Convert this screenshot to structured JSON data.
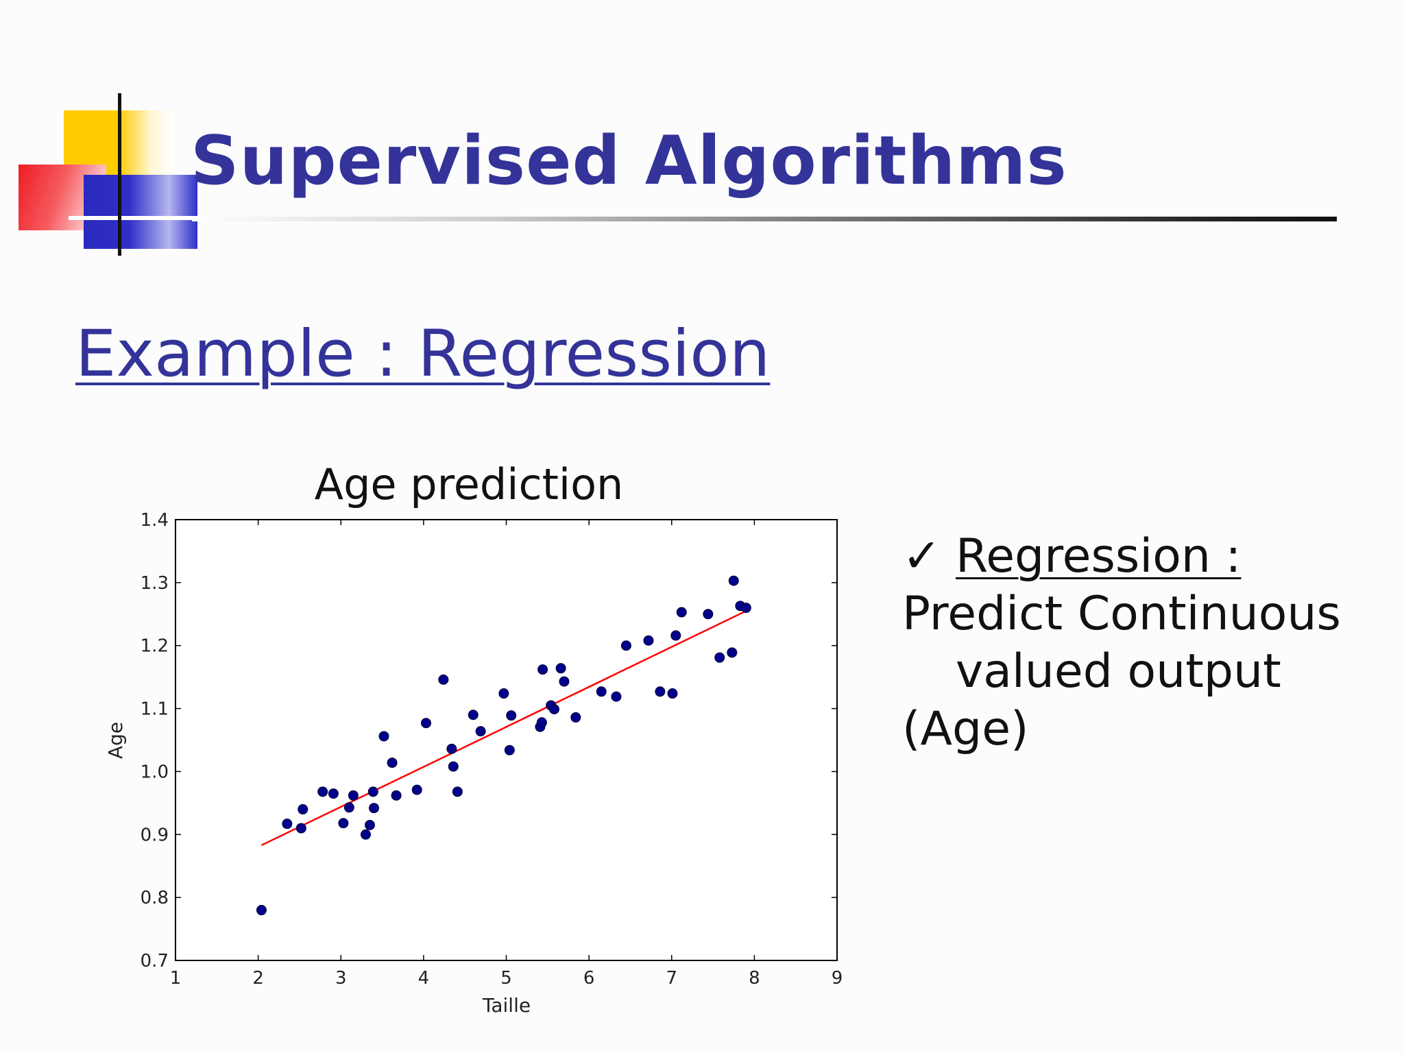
{
  "slide": {
    "title": "Supervised Algorithms",
    "section_heading": "Example : Regression",
    "accent_color": "#333399"
  },
  "bullet": {
    "icon": "checkmark-icon",
    "check": "✓",
    "heading": "Regression :",
    "line1": "Predict Continuous",
    "line2": "valued output",
    "line3": "(Age)"
  },
  "chart_data": {
    "type": "scatter",
    "title": "Age prediction",
    "xlabel": "Taille",
    "ylabel": "Age",
    "xlim": [
      1,
      9
    ],
    "ylim": [
      0.7,
      1.4
    ],
    "xticks": [
      "1",
      "2",
      "3",
      "4",
      "5",
      "6",
      "7",
      "8",
      "9"
    ],
    "yticks": [
      "0.7",
      "0.8",
      "0.9",
      "1.0",
      "1.1",
      "1.2",
      "1.3",
      "1.4"
    ],
    "grid": false,
    "point_color": "#00008b",
    "line_color": "#ff0000",
    "points": [
      [
        2.04,
        0.78
      ],
      [
        2.35,
        0.917
      ],
      [
        2.52,
        0.91
      ],
      [
        2.54,
        0.94
      ],
      [
        2.78,
        0.968
      ],
      [
        2.91,
        0.965
      ],
      [
        3.03,
        0.918
      ],
      [
        3.1,
        0.943
      ],
      [
        3.15,
        0.962
      ],
      [
        3.3,
        0.9
      ],
      [
        3.35,
        0.915
      ],
      [
        3.39,
        0.968
      ],
      [
        3.4,
        0.942
      ],
      [
        3.52,
        1.056
      ],
      [
        3.62,
        1.014
      ],
      [
        3.67,
        0.962
      ],
      [
        3.92,
        0.971
      ],
      [
        4.03,
        1.077
      ],
      [
        4.24,
        1.146
      ],
      [
        4.34,
        1.036
      ],
      [
        4.36,
        1.008
      ],
      [
        4.41,
        0.968
      ],
      [
        4.6,
        1.09
      ],
      [
        4.69,
        1.064
      ],
      [
        4.97,
        1.124
      ],
      [
        5.04,
        1.034
      ],
      [
        5.06,
        1.089
      ],
      [
        5.41,
        1.071
      ],
      [
        5.43,
        1.078
      ],
      [
        5.44,
        1.162
      ],
      [
        5.54,
        1.105
      ],
      [
        5.58,
        1.099
      ],
      [
        5.66,
        1.164
      ],
      [
        5.7,
        1.143
      ],
      [
        5.84,
        1.086
      ],
      [
        6.15,
        1.127
      ],
      [
        6.33,
        1.119
      ],
      [
        6.45,
        1.2
      ],
      [
        6.72,
        1.208
      ],
      [
        6.86,
        1.127
      ],
      [
        7.01,
        1.124
      ],
      [
        7.05,
        1.216
      ],
      [
        7.12,
        1.253
      ],
      [
        7.44,
        1.25
      ],
      [
        7.58,
        1.181
      ],
      [
        7.73,
        1.189
      ],
      [
        7.75,
        1.303
      ],
      [
        7.83,
        1.263
      ],
      [
        7.9,
        1.26
      ]
    ],
    "regression_line": {
      "x": [
        2.04,
        7.9
      ],
      "y": [
        0.883,
        1.255
      ]
    }
  }
}
